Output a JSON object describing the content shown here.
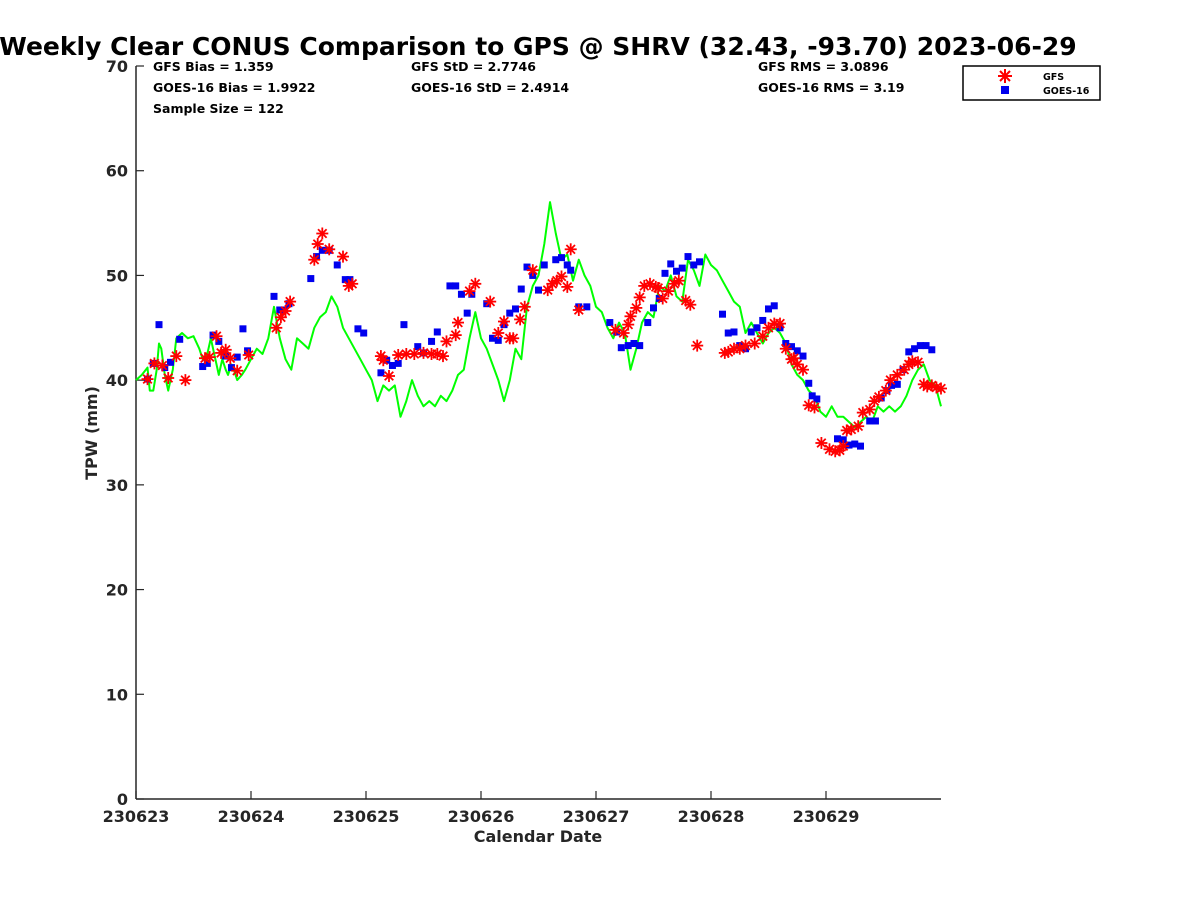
{
  "chart_data": {
    "type": "scatter",
    "title": "Weekly Clear CONUS Comparison to GPS @ SHRV (32.43, -93.70) 2023-06-29",
    "xlabel": "Calendar Date",
    "ylabel": "TPW (mm)",
    "xlim": [
      0,
      7
    ],
    "ylim": [
      0,
      70
    ],
    "yticks": [
      0,
      10,
      20,
      30,
      40,
      50,
      60,
      70
    ],
    "xticks": [
      {
        "value": 0,
        "label": "230623"
      },
      {
        "value": 1,
        "label": "230624"
      },
      {
        "value": 2,
        "label": "230625"
      },
      {
        "value": 3,
        "label": "230626"
      },
      {
        "value": 4,
        "label": "230627"
      },
      {
        "value": 5,
        "label": "230628"
      },
      {
        "value": 6,
        "label": "230629"
      }
    ],
    "grid": false,
    "legend_position": "top-right",
    "stats": {
      "gfs_bias": "GFS Bias = 1.359",
      "goes_bias": "GOES-16 Bias = 1.9922",
      "sample_size": "Sample Size = 122",
      "gfs_std": "GFS StD = 2.7746",
      "goes_std": "GOES-16 StD = 2.4914",
      "gfs_rms": "GFS RMS = 3.0896",
      "goes_rms": "GOES-16 RMS = 3.19"
    },
    "series": [
      {
        "name": "GFS",
        "marker": "asterisk",
        "color": "#ff0000",
        "x": [
          0.1,
          0.16,
          0.23,
          0.28,
          0.35,
          0.43,
          0.6,
          0.64,
          0.7,
          0.74,
          0.78,
          0.82,
          0.88,
          0.98,
          1.22,
          1.26,
          1.3,
          1.34,
          1.55,
          1.58,
          1.62,
          1.68,
          1.8,
          1.85,
          1.88,
          2.13,
          2.15,
          2.2,
          2.28,
          2.35,
          2.42,
          2.5,
          2.57,
          2.62,
          2.67,
          2.7,
          2.78,
          2.8,
          2.9,
          2.95,
          3.08,
          3.15,
          3.2,
          3.25,
          3.28,
          3.34,
          3.38,
          3.45,
          3.58,
          3.62,
          3.66,
          3.7,
          3.75,
          3.78,
          3.85,
          4.17,
          4.24,
          4.28,
          4.3,
          4.35,
          4.38,
          4.42,
          4.47,
          4.52,
          4.54,
          4.58,
          4.63,
          4.68,
          4.72,
          4.78,
          4.82,
          4.88,
          5.12,
          5.15,
          5.2,
          5.25,
          5.3,
          5.38,
          5.45,
          5.5,
          5.55,
          5.6,
          5.65,
          5.7,
          5.72,
          5.75,
          5.8,
          5.85,
          5.9,
          5.96,
          6.03,
          6.08,
          6.12,
          6.15,
          6.18,
          6.22,
          6.28,
          6.32,
          6.38,
          6.42,
          6.46,
          6.52,
          6.56,
          6.62,
          6.68,
          6.72,
          6.75,
          6.8,
          6.85,
          6.88,
          6.92,
          6.96,
          7.0
        ],
        "y": [
          40.1,
          41.6,
          41.4,
          40.2,
          42.3,
          40.0,
          42.1,
          42.2,
          44.2,
          42.6,
          42.9,
          42.1,
          40.9,
          42.4,
          45.0,
          46.0,
          46.6,
          47.5,
          51.5,
          53.0,
          54.0,
          52.5,
          51.8,
          49.0,
          49.2,
          42.3,
          41.9,
          40.4,
          42.4,
          42.5,
          42.5,
          42.6,
          42.5,
          42.5,
          42.3,
          43.7,
          44.3,
          45.5,
          48.5,
          49.2,
          47.5,
          44.5,
          45.6,
          44.0,
          44.0,
          45.8,
          47.0,
          50.5,
          48.6,
          49.2,
          49.5,
          49.9,
          48.9,
          52.5,
          46.7,
          44.8,
          44.5,
          45.3,
          46.1,
          46.9,
          47.9,
          49.0,
          49.2,
          48.9,
          48.8,
          47.8,
          48.5,
          49.2,
          49.5,
          47.6,
          47.2,
          43.3,
          42.6,
          42.7,
          43.0,
          43.0,
          43.3,
          43.5,
          44.2,
          45.0,
          45.4,
          45.4,
          43.0,
          42.0,
          42.1,
          41.5,
          41.0,
          37.6,
          37.4,
          34.0,
          33.4,
          33.2,
          33.3,
          33.7,
          35.2,
          35.3,
          35.6,
          36.9,
          37.2,
          38.0,
          38.4,
          39.0,
          40.0,
          40.5,
          41.0,
          41.5,
          41.8,
          41.7,
          39.6,
          39.4,
          39.5,
          39.3,
          39.2
        ]
      },
      {
        "name": "GOES-16",
        "marker": "square",
        "color": "#0000ee",
        "x": [
          0.1,
          0.15,
          0.2,
          0.25,
          0.3,
          0.38,
          0.58,
          0.62,
          0.67,
          0.72,
          0.78,
          0.83,
          0.88,
          0.93,
          0.97,
          1.2,
          1.25,
          1.29,
          1.33,
          1.52,
          1.57,
          1.62,
          1.68,
          1.75,
          1.82,
          1.86,
          1.93,
          1.98,
          2.13,
          2.18,
          2.23,
          2.28,
          2.33,
          2.45,
          2.5,
          2.57,
          2.62,
          2.73,
          2.78,
          2.83,
          2.88,
          2.92,
          3.05,
          3.1,
          3.15,
          3.2,
          3.25,
          3.3,
          3.35,
          3.4,
          3.45,
          3.5,
          3.55,
          3.65,
          3.7,
          3.75,
          3.78,
          3.85,
          3.92,
          4.12,
          4.18,
          4.22,
          4.28,
          4.33,
          4.38,
          4.45,
          4.5,
          4.55,
          4.6,
          4.65,
          4.7,
          4.75,
          4.8,
          4.85,
          4.9,
          5.1,
          5.15,
          5.2,
          5.25,
          5.3,
          5.35,
          5.4,
          5.45,
          5.5,
          5.55,
          5.6,
          5.65,
          5.7,
          5.75,
          5.8,
          5.85,
          5.88,
          5.92,
          6.1,
          6.15,
          6.2,
          6.25,
          6.3,
          6.38,
          6.43,
          6.48,
          6.53,
          6.57,
          6.62,
          6.67,
          6.72,
          6.77,
          6.82,
          6.87,
          6.92
        ],
        "y": [
          40.1,
          41.6,
          45.3,
          41.2,
          41.7,
          43.9,
          41.3,
          41.6,
          44.3,
          43.7,
          42.3,
          41.2,
          42.2,
          44.9,
          42.8,
          48.0,
          46.7,
          46.7,
          47.3,
          49.7,
          51.8,
          52.4,
          52.4,
          51.0,
          49.6,
          49.6,
          44.9,
          44.5,
          40.7,
          41.9,
          41.4,
          41.6,
          45.3,
          43.2,
          42.6,
          43.7,
          44.6,
          49.0,
          49.0,
          48.2,
          46.4,
          48.2,
          47.3,
          44.0,
          43.8,
          45.3,
          46.4,
          46.8,
          48.7,
          50.8,
          50.0,
          48.6,
          51.0,
          51.5,
          51.7,
          51.0,
          50.5,
          47.0,
          47.0,
          45.5,
          44.6,
          43.1,
          43.3,
          43.5,
          43.3,
          45.5,
          46.9,
          47.8,
          50.2,
          51.1,
          50.4,
          50.7,
          51.8,
          51.0,
          51.3,
          46.3,
          44.5,
          44.6,
          43.3,
          43.0,
          44.6,
          45.0,
          45.7,
          46.8,
          47.1,
          45.0,
          43.5,
          43.2,
          42.8,
          42.3,
          39.7,
          38.5,
          38.2,
          34.4,
          34.3,
          33.8,
          33.9,
          33.7,
          36.1,
          36.1,
          38.3,
          39.0,
          39.5,
          39.6,
          41.0,
          42.7,
          43.0,
          43.3,
          43.3,
          42.9
        ]
      },
      {
        "name": "GPS",
        "marker": "line",
        "color": "#00ff00",
        "x": [
          0.0,
          0.05,
          0.1,
          0.12,
          0.15,
          0.18,
          0.2,
          0.22,
          0.25,
          0.28,
          0.3,
          0.32,
          0.35,
          0.4,
          0.45,
          0.5,
          0.55,
          0.58,
          0.62,
          0.65,
          0.7,
          0.72,
          0.75,
          0.78,
          0.8,
          0.83,
          0.85,
          0.88,
          0.92,
          0.95,
          1.0,
          1.05,
          1.1,
          1.15,
          1.2,
          1.25,
          1.3,
          1.35,
          1.4,
          1.45,
          1.5,
          1.55,
          1.6,
          1.65,
          1.7,
          1.75,
          1.8,
          1.85,
          1.9,
          1.95,
          2.0,
          2.05,
          2.1,
          2.15,
          2.2,
          2.25,
          2.3,
          2.35,
          2.4,
          2.45,
          2.5,
          2.55,
          2.6,
          2.65,
          2.7,
          2.75,
          2.8,
          2.85,
          2.9,
          2.95,
          3.0,
          3.05,
          3.1,
          3.15,
          3.2,
          3.25,
          3.3,
          3.35,
          3.4,
          3.45,
          3.5,
          3.55,
          3.6,
          3.65,
          3.7,
          3.75,
          3.8,
          3.85,
          3.9,
          3.95,
          4.0,
          4.05,
          4.1,
          4.15,
          4.2,
          4.25,
          4.3,
          4.35,
          4.4,
          4.45,
          4.5,
          4.55,
          4.6,
          4.65,
          4.7,
          4.75,
          4.8,
          4.85,
          4.9,
          4.95,
          5.0,
          5.05,
          5.1,
          5.15,
          5.2,
          5.25,
          5.3,
          5.35,
          5.4,
          5.45,
          5.5,
          5.55,
          5.6,
          5.65,
          5.7,
          5.75,
          5.8,
          5.85,
          5.9,
          5.95,
          6.0,
          6.05,
          6.1,
          6.15,
          6.2,
          6.25,
          6.3,
          6.35,
          6.4,
          6.45,
          6.5,
          6.55,
          6.6,
          6.65,
          6.7,
          6.75,
          6.8,
          6.85,
          6.9,
          6.95,
          7.0
        ],
        "y": [
          40.0,
          40.5,
          41.2,
          39.0,
          39.0,
          41.0,
          43.5,
          43.0,
          40.5,
          39.0,
          40.0,
          41.0,
          44.0,
          44.5,
          44.0,
          44.2,
          43.0,
          42.0,
          42.5,
          44.0,
          41.5,
          40.5,
          42.0,
          41.0,
          40.5,
          41.5,
          41.0,
          40.0,
          40.5,
          41.0,
          42.0,
          43.0,
          42.5,
          44.0,
          47.0,
          44.0,
          42.0,
          41.0,
          44.0,
          43.5,
          43.0,
          45.0,
          46.0,
          46.5,
          48.0,
          47.0,
          45.0,
          44.0,
          43.0,
          42.0,
          41.0,
          40.0,
          38.0,
          39.5,
          39.0,
          39.5,
          36.5,
          38.0,
          40.0,
          38.5,
          37.5,
          38.0,
          37.5,
          38.5,
          38.0,
          39.0,
          40.5,
          41.0,
          44.0,
          46.5,
          44.0,
          43.0,
          41.5,
          40.0,
          38.0,
          40.0,
          43.0,
          42.0,
          47.0,
          49.0,
          50.0,
          53.0,
          57.0,
          54.0,
          51.5,
          52.0,
          49.5,
          51.5,
          50.0,
          49.0,
          47.0,
          46.5,
          45.0,
          44.0,
          45.5,
          44.5,
          41.0,
          43.0,
          45.5,
          46.5,
          46.0,
          49.0,
          48.5,
          50.0,
          48.0,
          47.5,
          51.5,
          50.5,
          49.0,
          52.0,
          51.0,
          50.5,
          49.5,
          48.5,
          47.5,
          47.0,
          44.5,
          45.5,
          44.5,
          43.5,
          44.5,
          45.0,
          44.5,
          43.5,
          41.5,
          40.5,
          40.0,
          39.0,
          38.5,
          37.0,
          36.5,
          37.5,
          36.5,
          36.5,
          36.0,
          35.5,
          36.0,
          36.5,
          36.0,
          37.5,
          37.0,
          37.5,
          37.0,
          37.5,
          38.5,
          40.0,
          41.0,
          41.5,
          40.0,
          39.5,
          37.5
        ]
      }
    ]
  }
}
